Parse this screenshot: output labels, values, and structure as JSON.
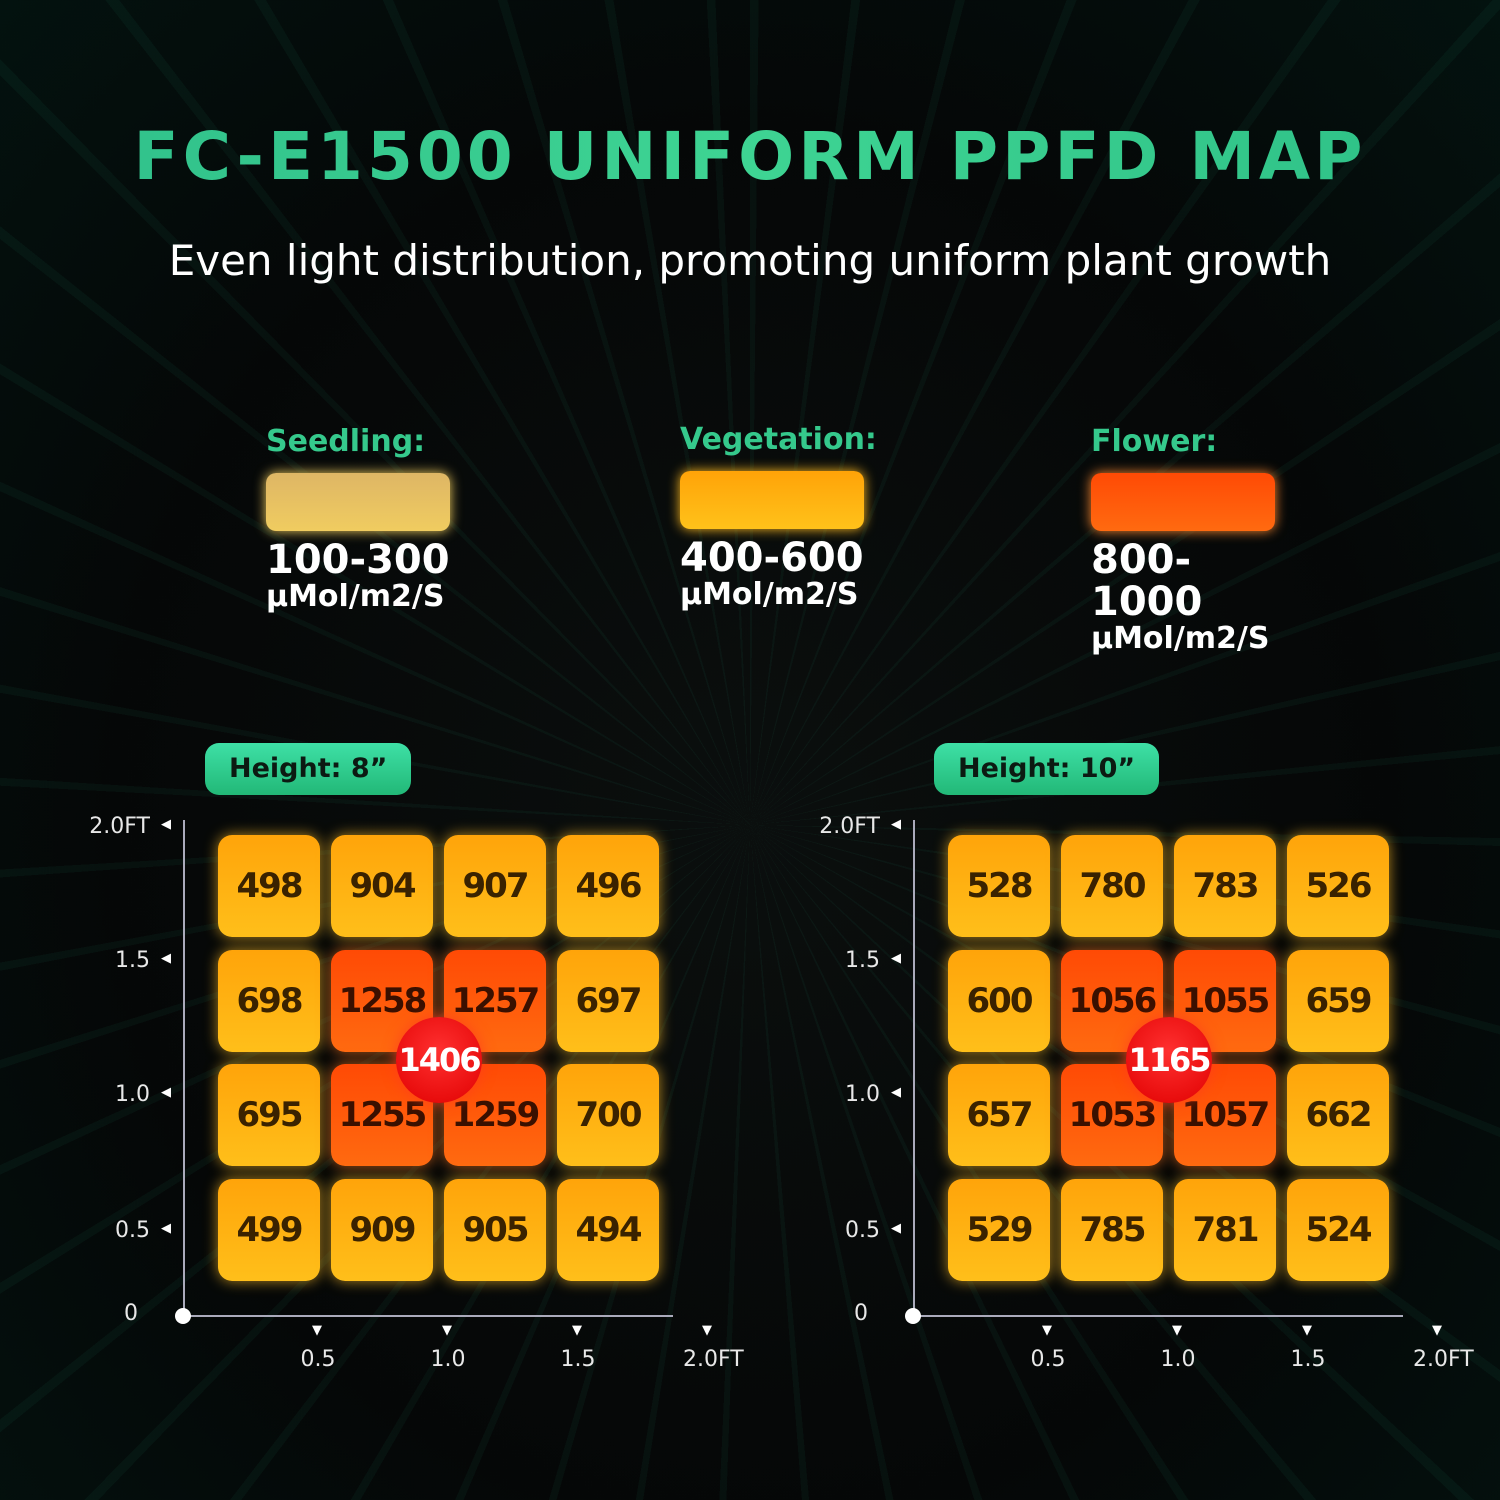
{
  "title": "FC-E1500 UNIFORM PPFD MAP",
  "subtitle": "Even light distribution, promoting uniform plant growth",
  "legend": [
    {
      "label": "Seedling:",
      "range": "100-300",
      "unit": "µMol/m2/S",
      "color": "#e0b865"
    },
    {
      "label": "Vegetation:",
      "range": "400-600",
      "unit": "µMol/m2/S",
      "color": "#ffa810"
    },
    {
      "label": "Flower:",
      "range": "800-1000",
      "unit": "µMol/m2/S",
      "color": "#ff5008"
    }
  ],
  "chart_data": [
    {
      "type": "heatmap",
      "title": "Height: 8”",
      "x_ticks": [
        "0",
        "0.5",
        "1.0",
        "1.5",
        "2.0FT"
      ],
      "y_ticks": [
        "0",
        "0.5",
        "1.0",
        "1.5",
        "2.0FT"
      ],
      "rows_top_to_bottom": [
        [
          498,
          904,
          907,
          496
        ],
        [
          698,
          1258,
          1257,
          697
        ],
        [
          695,
          1255,
          1259,
          700
        ],
        [
          499,
          909,
          905,
          494
        ]
      ],
      "center_value": 1406
    },
    {
      "type": "heatmap",
      "title": "Height: 10”",
      "x_ticks": [
        "0",
        "0.5",
        "1.0",
        "1.5",
        "2.0FT"
      ],
      "y_ticks": [
        "0",
        "0.5",
        "1.0",
        "1.5",
        "2.0FT"
      ],
      "rows_top_to_bottom": [
        [
          528,
          780,
          783,
          526
        ],
        [
          600,
          1056,
          1055,
          659
        ],
        [
          657,
          1053,
          1057,
          662
        ],
        [
          529,
          785,
          781,
          524
        ]
      ],
      "center_value": 1165
    }
  ]
}
